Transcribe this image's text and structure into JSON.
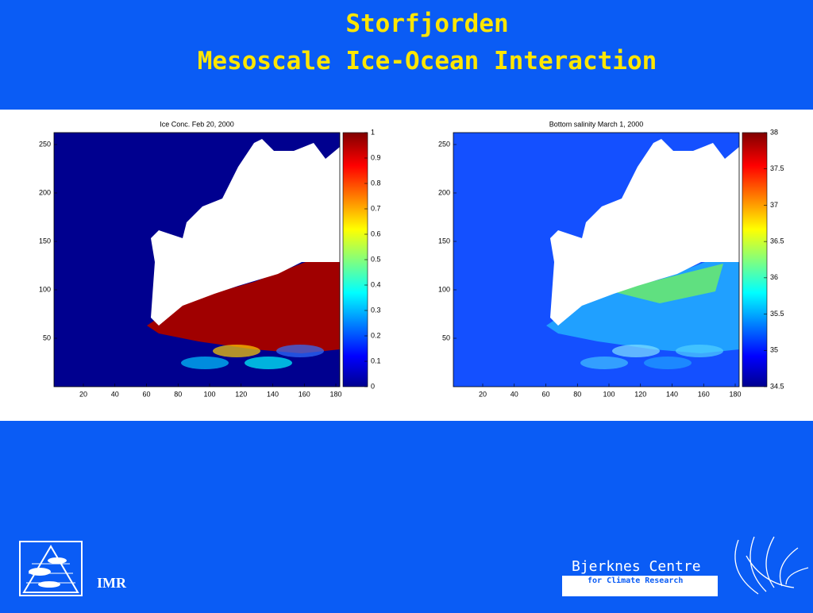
{
  "header": {
    "title": "Storfjorden",
    "subtitle": "Mesoscale Ice-Ocean Interaction"
  },
  "panels": [
    {
      "title": "Ice Conc. Feb 20, 2000",
      "xticks": [
        20,
        40,
        60,
        80,
        100,
        120,
        140,
        160,
        180
      ],
      "yticks": [
        250,
        200,
        150,
        100,
        50
      ],
      "colorbar_ticks": [
        1,
        0.9,
        0.8,
        0.7,
        0.6,
        0.5,
        0.4,
        0.3,
        0.2,
        0.1,
        0
      ]
    },
    {
      "title": "Bottom salinity March 1, 2000",
      "xticks": [
        20,
        40,
        60,
        80,
        100,
        120,
        140,
        160,
        180
      ],
      "yticks": [
        250,
        200,
        150,
        100,
        50
      ],
      "colorbar_ticks": [
        38,
        37.5,
        37,
        36.5,
        36,
        35.5,
        35,
        34.5
      ]
    }
  ],
  "footer": {
    "left_logo": "IMR",
    "right_logo": "Bjerknes Centre",
    "right_logo_sub": "for Climate Research"
  }
}
